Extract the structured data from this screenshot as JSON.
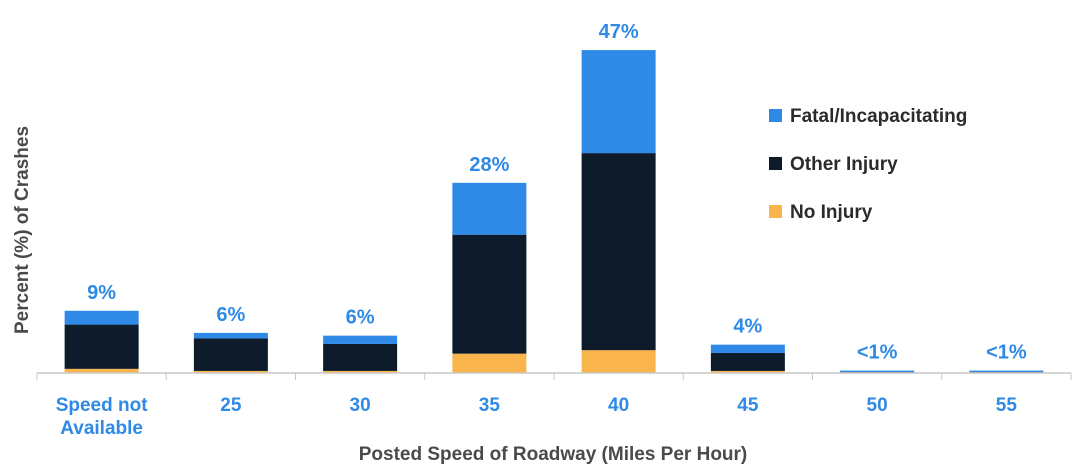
{
  "chart_data": {
    "type": "bar",
    "stacked": true,
    "title": "",
    "xlabel": "Posted Speed of Roadway (Miles Per Hour)",
    "ylabel": "Percent (%) of Crashes",
    "categories": [
      "Speed not Available",
      "25",
      "30",
      "35",
      "40",
      "45",
      "50",
      "55"
    ],
    "category_display": [
      [
        "Speed not",
        "Available"
      ],
      [
        "25"
      ],
      [
        "30"
      ],
      [
        "35"
      ],
      [
        "40"
      ],
      [
        "45"
      ],
      [
        "50"
      ],
      [
        "55"
      ]
    ],
    "totals_display": [
      "9%",
      "6%",
      "6%",
      "28%",
      "47%",
      "4%",
      "<1%",
      "<1%"
    ],
    "series": [
      {
        "name": "No Injury",
        "color": "#f9b44c",
        "values": [
          0.6,
          0.3,
          0.3,
          2.8,
          3.3,
          0.3,
          0.1,
          0.1
        ]
      },
      {
        "name": "Other Injury",
        "color": "#0d1b2a",
        "values": [
          6.4,
          4.7,
          3.9,
          17.2,
          28.5,
          2.6,
          0.05,
          0.05
        ]
      },
      {
        "name": "Fatal/Incapacitating",
        "color": "#2e8ae6",
        "values": [
          2.0,
          0.8,
          1.2,
          7.5,
          14.9,
          1.2,
          0.2,
          0.2
        ]
      }
    ],
    "legend_order": [
      "Fatal/Incapacitating",
      "Other Injury",
      "No Injury"
    ],
    "legend_position": "right",
    "grid": false,
    "ylim": [
      0,
      47
    ],
    "colors": {
      "label_blue": "#2e8ae6",
      "axis": "#c8c8c8"
    }
  }
}
